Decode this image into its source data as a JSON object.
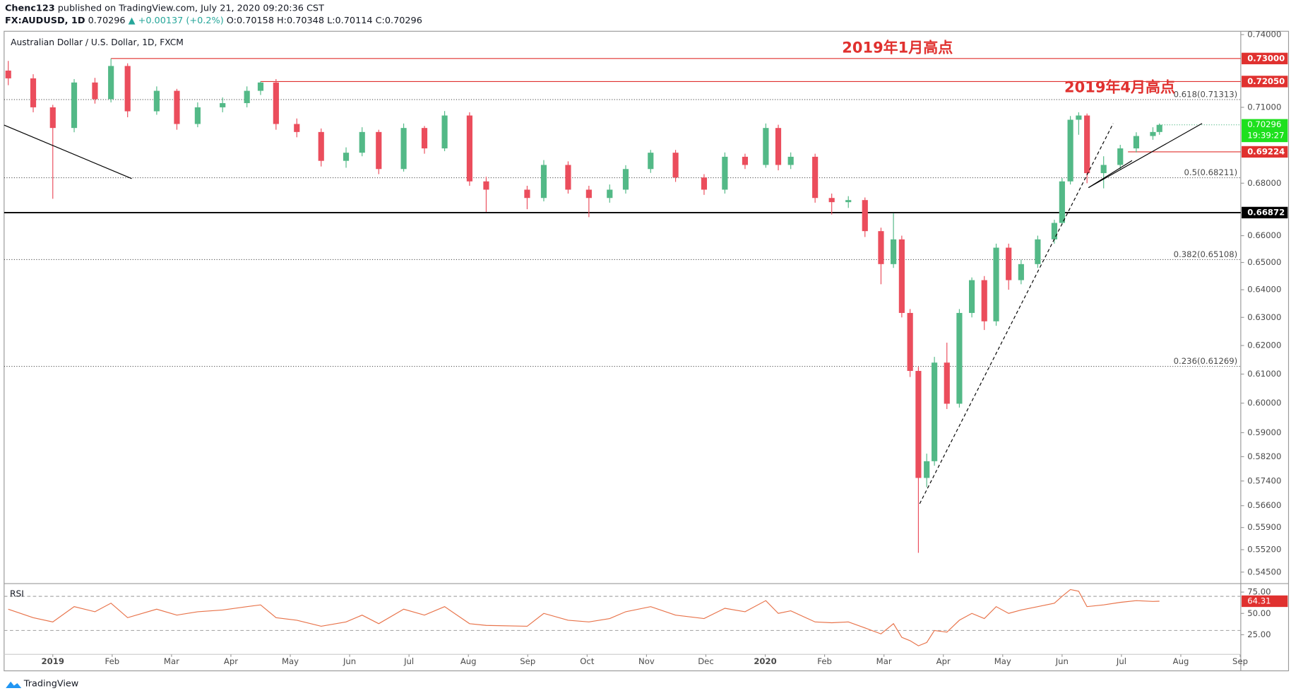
{
  "header": {
    "author": "Chenc123",
    "published": "published on TradingView.com, July 21, 2020 09:20:36 CST",
    "symbol": "FX:AUDUSD, 1D",
    "last": "0.70296",
    "change": "▲ +0.00137 (+0.2%)",
    "ohlc": "O:0.70158 H:0.70348 L:0.70114 C:0.70296",
    "brand": "TradingView"
  },
  "chart_data": {
    "type": "candlestick",
    "title": "Australian Dollar / U.S. Dollar, 1D, FXCM",
    "up_color": "#53b987",
    "down_color": "#eb4d5c",
    "log_scale": true,
    "grid": false,
    "x": [
      -0.75,
      -0.33,
      0,
      0.36,
      0.71,
      0.98,
      1.26,
      1.75,
      2.09,
      2.44,
      2.86,
      3.27,
      3.5,
      3.76,
      4.11,
      4.52,
      4.94,
      5.21,
      5.49,
      5.91,
      6.26,
      6.6,
      7.02,
      7.3,
      7.99,
      8.27,
      8.68,
      9.03,
      9.38,
      9.65,
      10.07,
      10.49,
      10.97,
      11.32,
      11.66,
      12.01,
      12.22,
      12.43,
      12.84,
      13.12,
      13.4,
      13.68,
      13.95,
      14.16,
      14.3,
      14.44,
      14.58,
      14.72,
      14.85,
      15.06,
      15.27,
      15.48,
      15.69,
      15.89,
      16.1,
      16.31,
      16.59,
      16.87,
      17,
      17.14,
      17.28,
      17.42,
      17.7,
      17.98,
      18.25,
      18.53,
      18.64
    ],
    "open": [
      0.725,
      0.7218,
      0.71,
      0.7017,
      0.7201,
      0.7133,
      0.7269,
      0.7084,
      0.7167,
      0.7033,
      0.71,
      0.7117,
      0.7167,
      0.7201,
      0.7033,
      0.7001,
      0.6887,
      0.6919,
      0.7001,
      0.6855,
      0.7017,
      0.6936,
      0.7067,
      0.6807,
      0.6775,
      0.6743,
      0.6871,
      0.6775,
      0.6743,
      0.6775,
      0.6855,
      0.6919,
      0.6822,
      0.6775,
      0.6903,
      0.6871,
      0.7017,
      0.6871,
      0.6903,
      0.6743,
      0.6727,
      0.6735,
      0.6617,
      0.6494,
      0.6586,
      0.6316,
      0.6111,
      0.575,
      0.5805,
      0.614,
      0.5998,
      0.6316,
      0.6435,
      0.6286,
      0.6555,
      0.6435,
      0.6494,
      0.6586,
      0.6648,
      0.6807,
      0.705,
      0.7067,
      0.6839,
      0.6871,
      0.6936,
      0.6985,
      0.7001
    ],
    "high": [
      0.729,
      0.7235,
      0.711,
      0.7215,
      0.722,
      0.73,
      0.728,
      0.7185,
      0.7175,
      0.712,
      0.714,
      0.7185,
      0.7206,
      0.7215,
      0.7055,
      0.7015,
      0.694,
      0.702,
      0.701,
      0.7035,
      0.7025,
      0.7085,
      0.708,
      0.6825,
      0.679,
      0.689,
      0.6885,
      0.679,
      0.6795,
      0.687,
      0.693,
      0.693,
      0.6835,
      0.692,
      0.6915,
      0.7035,
      0.703,
      0.692,
      0.6915,
      0.676,
      0.675,
      0.6745,
      0.663,
      0.6685,
      0.66,
      0.633,
      0.6125,
      0.583,
      0.616,
      0.621,
      0.633,
      0.6445,
      0.645,
      0.657,
      0.657,
      0.651,
      0.66,
      0.666,
      0.682,
      0.7065,
      0.708,
      0.7075,
      0.6905,
      0.695,
      0.7,
      0.702,
      0.7035
    ],
    "low": [
      0.719,
      0.708,
      0.674,
      0.7,
      0.7115,
      0.712,
      0.706,
      0.707,
      0.701,
      0.702,
      0.708,
      0.71,
      0.715,
      0.701,
      0.698,
      0.6865,
      0.686,
      0.6905,
      0.6835,
      0.6845,
      0.6915,
      0.6925,
      0.679,
      0.669,
      0.67,
      0.673,
      0.676,
      0.667,
      0.6725,
      0.676,
      0.684,
      0.6805,
      0.6755,
      0.676,
      0.6855,
      0.686,
      0.685,
      0.6855,
      0.6725,
      0.668,
      0.6705,
      0.6595,
      0.642,
      0.648,
      0.63,
      0.609,
      0.551,
      0.572,
      0.579,
      0.598,
      0.5985,
      0.63,
      0.6255,
      0.627,
      0.64,
      0.642,
      0.648,
      0.657,
      0.664,
      0.6795,
      0.699,
      0.68,
      0.678,
      0.6855,
      0.692,
      0.697,
      0.699
    ],
    "close": [
      0.7218,
      0.71,
      0.7017,
      0.7201,
      0.7133,
      0.7269,
      0.7084,
      0.7167,
      0.7033,
      0.71,
      0.7117,
      0.7167,
      0.7201,
      0.7033,
      0.7001,
      0.6887,
      0.6919,
      0.7001,
      0.6855,
      0.7017,
      0.6936,
      0.7067,
      0.6807,
      0.6775,
      0.6743,
      0.6871,
      0.6775,
      0.6743,
      0.6775,
      0.6855,
      0.6919,
      0.6822,
      0.6775,
      0.6903,
      0.6871,
      0.7017,
      0.6871,
      0.6903,
      0.6743,
      0.6727,
      0.6735,
      0.6617,
      0.6494,
      0.6586,
      0.6316,
      0.6111,
      0.575,
      0.5805,
      0.614,
      0.5998,
      0.6316,
      0.6435,
      0.6286,
      0.6555,
      0.6435,
      0.6494,
      0.6586,
      0.6648,
      0.6807,
      0.705,
      0.7067,
      0.6839,
      0.6871,
      0.6936,
      0.6985,
      0.7001,
      0.70296
    ],
    "countdown": "19:39:27",
    "xlim": [
      -0.82,
      20.01
    ],
    "xticks": [
      {
        "value": 0,
        "label": "2019"
      },
      {
        "value": 1,
        "label": "Feb"
      },
      {
        "value": 2,
        "label": "Mar"
      },
      {
        "value": 3,
        "label": "Apr"
      },
      {
        "value": 4,
        "label": "May"
      },
      {
        "value": 5,
        "label": "Jun"
      },
      {
        "value": 6,
        "label": "Jul"
      },
      {
        "value": 7,
        "label": "Aug"
      },
      {
        "value": 8,
        "label": "Sep"
      },
      {
        "value": 9,
        "label": "Oct"
      },
      {
        "value": 10,
        "label": "Nov"
      },
      {
        "value": 11,
        "label": "Dec"
      },
      {
        "value": 12,
        "label": "2020"
      },
      {
        "value": 13,
        "label": "Feb"
      },
      {
        "value": 14,
        "label": "Mar"
      },
      {
        "value": 15,
        "label": "Apr"
      },
      {
        "value": 16,
        "label": "May"
      },
      {
        "value": 17,
        "label": "Jun"
      },
      {
        "value": 18,
        "label": "Jul"
      },
      {
        "value": 19,
        "label": "Aug"
      },
      {
        "value": 20,
        "label": "Sep"
      }
    ],
    "ylim": [
      0.5417,
      0.7414
    ],
    "yticks": [
      {
        "value": 0.74,
        "label": "0.74000"
      },
      {
        "value": 0.71,
        "label": "0.71000"
      },
      {
        "value": 0.68,
        "label": "0.68000"
      },
      {
        "value": 0.66,
        "label": "0.66000"
      },
      {
        "value": 0.65,
        "label": "0.65000"
      },
      {
        "value": 0.64,
        "label": "0.64000"
      },
      {
        "value": 0.63,
        "label": "0.63000"
      },
      {
        "value": 0.62,
        "label": "0.62000"
      },
      {
        "value": 0.61,
        "label": "0.61000"
      },
      {
        "value": 0.6,
        "label": "0.60000"
      },
      {
        "value": 0.59,
        "label": "0.59000"
      },
      {
        "value": 0.582,
        "label": "0.58200"
      },
      {
        "value": 0.574,
        "label": "0.57400"
      },
      {
        "value": 0.566,
        "label": "0.56600"
      },
      {
        "value": 0.559,
        "label": "0.55900"
      },
      {
        "value": 0.552,
        "label": "0.55200"
      },
      {
        "value": 0.545,
        "label": "0.54500"
      }
    ],
    "levels": [
      {
        "value": 0.73,
        "label": "0.73000",
        "color": "#e0312f",
        "x_start": 0.98
      },
      {
        "value": 0.7205,
        "label": "0.72050",
        "color": "#e0312f",
        "x_start": 3.5
      },
      {
        "value": 0.69224,
        "label": "0.69224",
        "color": "#e0312f",
        "x_start": 18.11
      },
      {
        "value": 0.66872,
        "label": "0.66872",
        "color": "#000000",
        "x_start": -0.82
      }
    ],
    "fib_levels": [
      {
        "value": 0.71313,
        "label": "0.618(0.71313)"
      },
      {
        "value": 0.68211,
        "label": "0.5(0.68211)"
      },
      {
        "value": 0.65108,
        "label": "0.382(0.65108)"
      },
      {
        "value": 0.61269,
        "label": "0.236(0.61269)"
      }
    ],
    "annotations": [
      "2019年1月高点",
      "2019年4月高点"
    ],
    "rsi": {
      "name": "RSI",
      "color": "#e8734a",
      "ylim": [
        2,
        84
      ],
      "yticks": [
        {
          "value": 75,
          "label": "75.00"
        },
        {
          "value": 50,
          "label": "50.00"
        },
        {
          "value": 25,
          "label": "25.00"
        }
      ],
      "bands": [
        70,
        30
      ],
      "values": [
        55,
        45,
        40,
        58,
        52,
        62,
        45,
        55,
        48,
        52,
        54,
        58,
        60,
        45,
        42,
        35,
        40,
        48,
        38,
        55,
        48,
        58,
        38,
        36,
        35,
        50,
        42,
        40,
        44,
        52,
        58,
        48,
        44,
        56,
        52,
        65,
        50,
        53,
        40,
        39,
        40,
        33,
        26,
        38,
        22,
        18,
        12,
        16,
        30,
        28,
        42,
        50,
        44,
        58,
        50,
        54,
        58,
        62,
        70,
        78,
        76,
        58,
        60,
        63,
        65,
        64,
        64.31
      ]
    }
  }
}
